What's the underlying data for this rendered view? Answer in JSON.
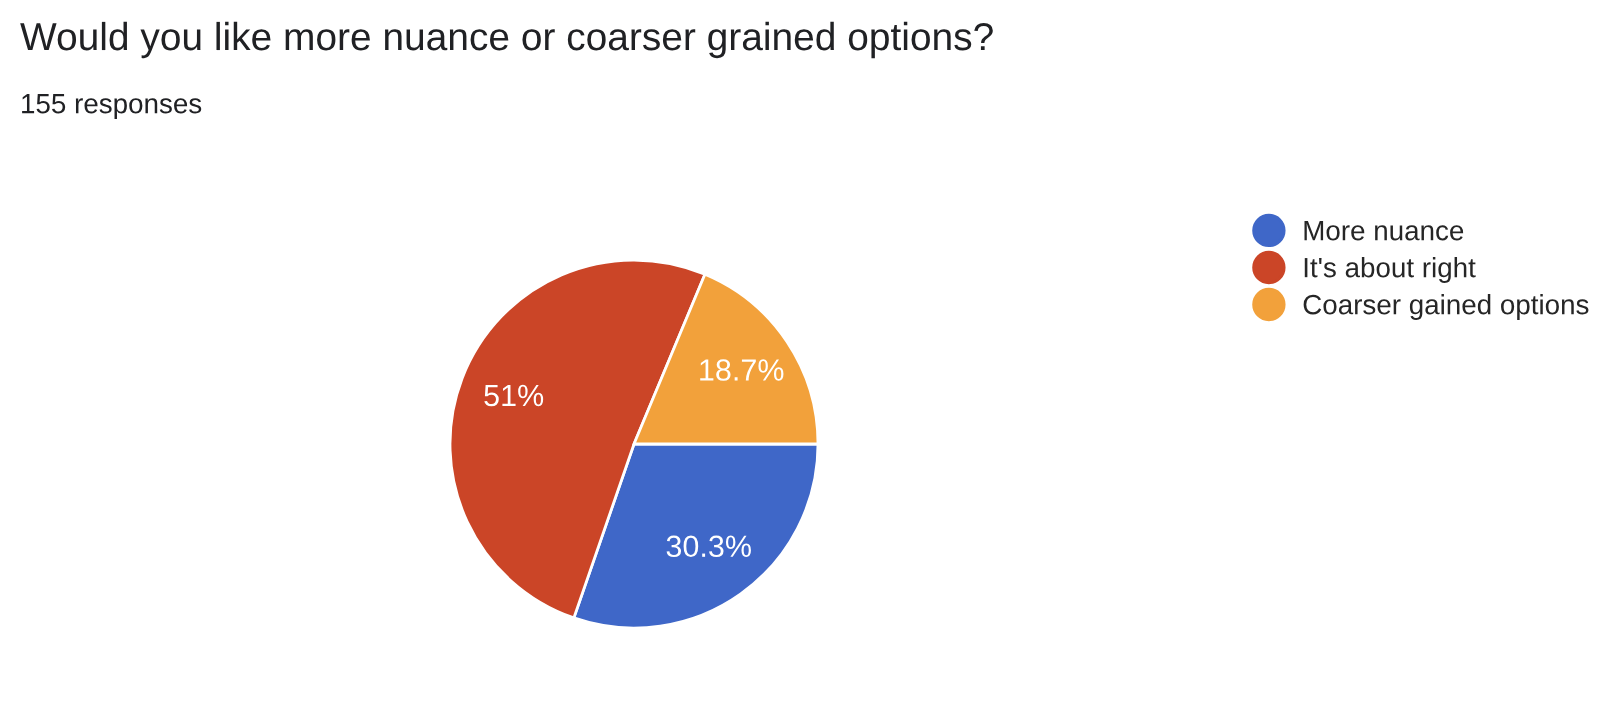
{
  "chart_data": {
    "type": "pie",
    "title": "Would you like more nuance or coarser grained options?",
    "subtitle": "155 responses",
    "categories": [
      "More nuance",
      "It's about right",
      "Coarser gained options"
    ],
    "values": [
      30.3,
      51,
      18.7
    ],
    "value_labels": [
      "30.3%",
      "51%",
      "18.7%"
    ],
    "colors": [
      "#3f67c8",
      "#cb4527",
      "#f2a13b"
    ],
    "legend": "right"
  }
}
